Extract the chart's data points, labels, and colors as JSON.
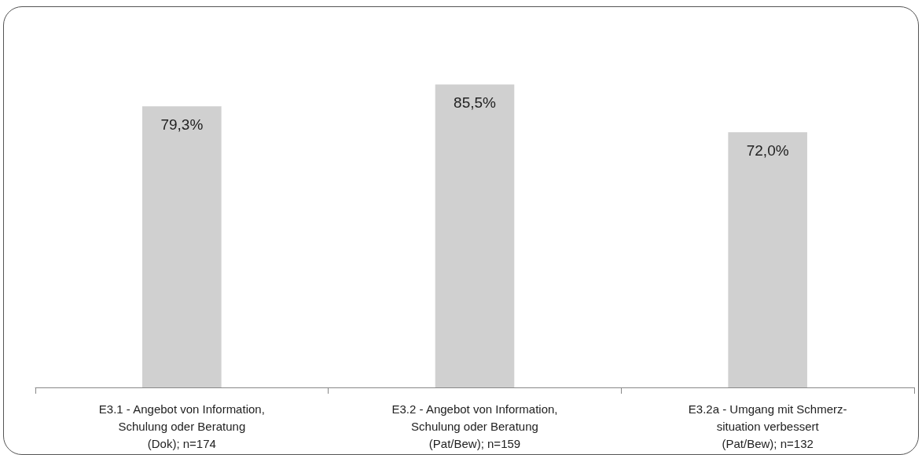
{
  "chart_data": {
    "type": "bar",
    "categories": [
      "E3.1 - Angebot von Information,\nSchulung oder Beratung\n(Dok); n=174",
      "E3.2 - Angebot von Information,\nSchulung oder Beratung\n(Pat/Bew); n=159",
      "E3.2a - Umgang mit Schmerz-\nsituation verbessert\n(Pat/Bew); n=132"
    ],
    "values": [
      79.3,
      85.5,
      72.0
    ],
    "value_labels": [
      "79,3%",
      "85,5%",
      "72,0%"
    ],
    "color": "#d0d0d0"
  }
}
